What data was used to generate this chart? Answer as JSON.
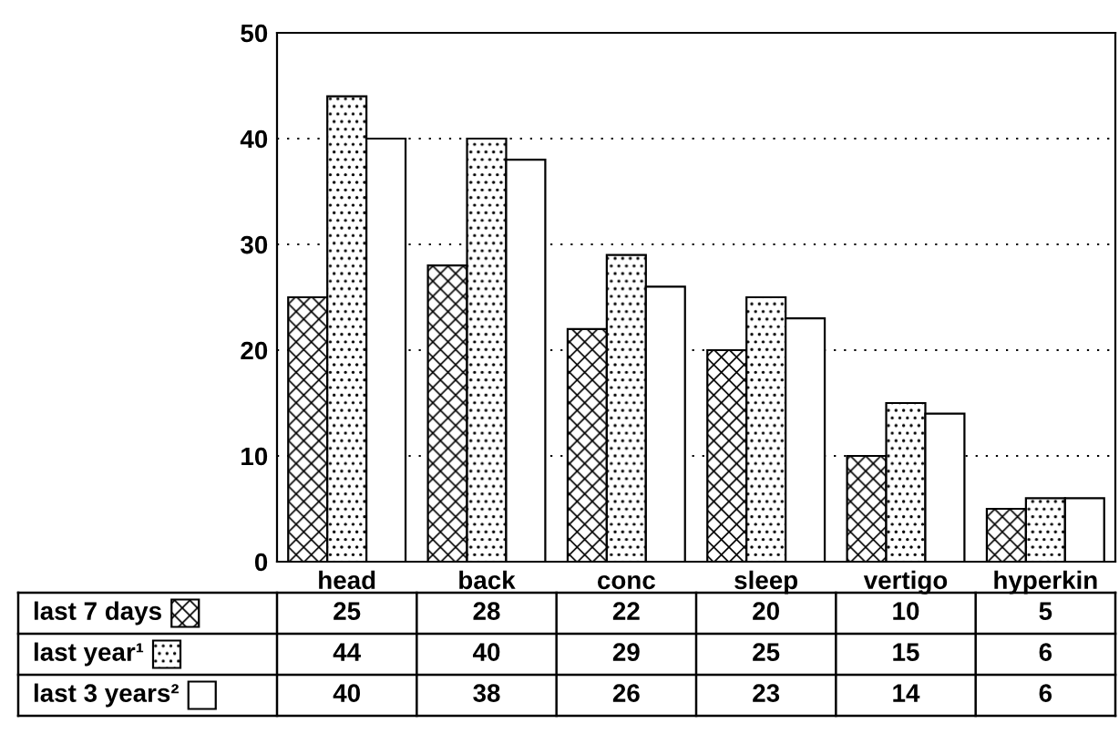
{
  "chart_data": {
    "type": "bar",
    "categories": [
      "head",
      "back",
      "conc",
      "sleep",
      "vertigo",
      "hyperkin"
    ],
    "series": [
      {
        "name": "last 7 days",
        "color": "#000000",
        "values": [
          25,
          28,
          22,
          20,
          10,
          5
        ]
      },
      {
        "name": "last year¹",
        "color": "#000000",
        "values": [
          44,
          40,
          29,
          25,
          15,
          6
        ]
      },
      {
        "name": "last 3 years²",
        "color": "#ffffff",
        "values": [
          40,
          38,
          26,
          23,
          14,
          6
        ]
      }
    ],
    "ylim": [
      0,
      50
    ],
    "yticks": [
      0,
      10,
      20,
      30,
      40,
      50
    ],
    "grid": "y",
    "legend": "bottom left",
    "data_labels": true
  }
}
